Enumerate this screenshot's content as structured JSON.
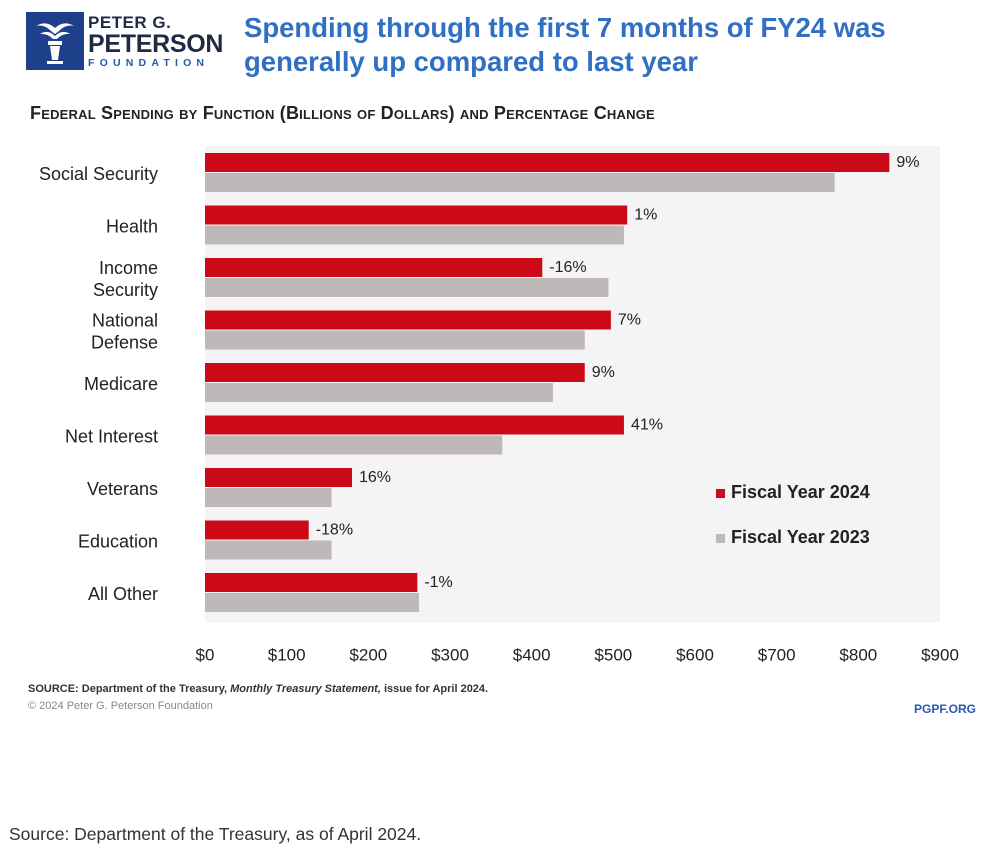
{
  "header": {
    "logo_line1": "PETER G.",
    "logo_line2": "PETERSON",
    "logo_line3": "FOUNDATION",
    "headline": "Spending through the first 7 months of FY24 was generally up compared to last year",
    "subtitle": "Federal Spending by Function (Billions of Dollars) and Percentage Change"
  },
  "chart_data": {
    "type": "bar",
    "orientation": "horizontal",
    "categories": [
      [
        "Social Security"
      ],
      [
        "Health"
      ],
      [
        "Income",
        "Security"
      ],
      [
        "National",
        "Defense"
      ],
      [
        "Medicare"
      ],
      [
        "Net Interest"
      ],
      [
        "Veterans"
      ],
      [
        "Education"
      ],
      [
        "All Other"
      ]
    ],
    "series": [
      {
        "name": "Fiscal Year 2024",
        "color": "#cc0a17",
        "values": [
          838,
          517,
          413,
          497,
          465,
          513,
          180,
          127,
          260
        ]
      },
      {
        "name": "Fiscal Year 2023",
        "color": "#bfb8b8",
        "values": [
          771,
          513,
          494,
          465,
          426,
          364,
          155,
          155,
          262
        ]
      }
    ],
    "pct_change_labels": [
      "9%",
      "1%",
      "-16%",
      "7%",
      "9%",
      "41%",
      "16%",
      "-18%",
      "-1%"
    ],
    "xlim": [
      0,
      900
    ],
    "xticks": [
      0,
      100,
      200,
      300,
      400,
      500,
      600,
      700,
      800,
      900
    ],
    "xtick_labels": [
      "$0",
      "$100",
      "$200",
      "$300",
      "$400",
      "$500",
      "$600",
      "$700",
      "$800",
      "$900"
    ],
    "legend_position": "right-middle",
    "grid": false
  },
  "footer": {
    "source_prefix": "SOURCE: Department of the Treasury,",
    "source_italic": "Monthly Treasury Statement,",
    "source_suffix": "issue for April 2024.",
    "copyright": "© 2024 Peter G. Peterson Foundation",
    "site": "PGPF.ORG"
  },
  "page_footnote": "Source: Department of the Treasury, as of April 2024."
}
